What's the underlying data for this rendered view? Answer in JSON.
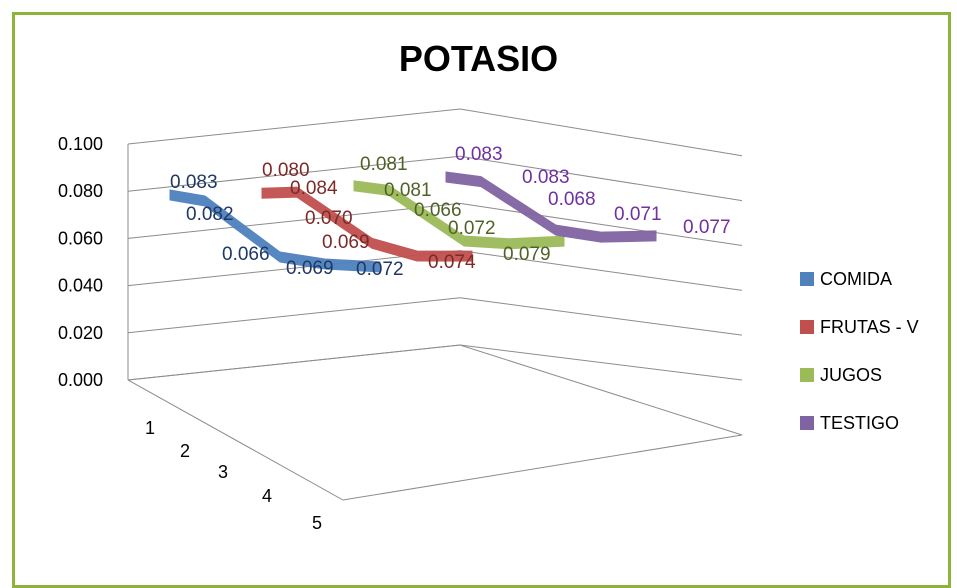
{
  "chart_data": {
    "type": "area",
    "title": "POTASIO",
    "categories": [
      "1",
      "2",
      "3",
      "4",
      "5"
    ],
    "y_ticks": [
      "0.000",
      "0.020",
      "0.040",
      "0.060",
      "0.080",
      "0.100"
    ],
    "ylim": [
      0,
      0.1
    ],
    "legend_position": "right",
    "series": [
      {
        "name": "COMIDA",
        "color": "#4f81bd",
        "label_color": "#1f3864",
        "values": [
          0.083,
          0.082,
          0.066,
          0.069,
          0.072
        ],
        "labels": [
          "0.083",
          "0.082",
          "0.066",
          "0.069",
          "0.072"
        ]
      },
      {
        "name": "FRUTAS - V",
        "color": "#c0504d",
        "label_color": "#7b2a28",
        "values": [
          0.08,
          0.084,
          0.07,
          0.069,
          0.074
        ],
        "labels": [
          "0.080",
          "0.084",
          "0.070",
          "0.069",
          "0.074"
        ]
      },
      {
        "name": "JUGOS",
        "color": "#9bbb59",
        "label_color": "#4f6228",
        "values": [
          0.081,
          0.081,
          0.066,
          0.072,
          0.079
        ],
        "labels": [
          "0.081",
          "0.081",
          "0.066",
          "0.072",
          "0.079"
        ]
      },
      {
        "name": "TESTIGO",
        "color": "#8064a2",
        "label_color": "#7030a0",
        "values": [
          0.083,
          0.083,
          0.068,
          0.071,
          0.077
        ],
        "labels": [
          "0.083",
          "0.083",
          "0.068",
          "0.071",
          "0.077"
        ]
      }
    ]
  }
}
